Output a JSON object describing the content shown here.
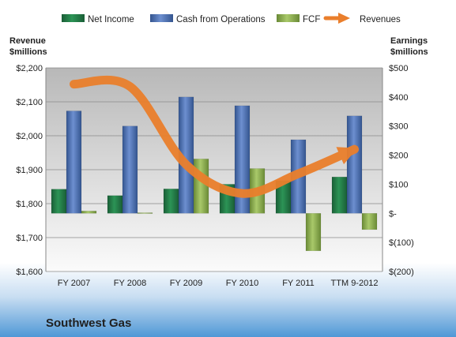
{
  "chart_data": {
    "type": "bar",
    "company": "Southwest Gas",
    "categories": [
      "FY 2007",
      "FY 2008",
      "FY 2009",
      "FY 2010",
      "FY 2011",
      "TTM 9-2012"
    ],
    "left_axis": {
      "title_line1": "Revenue",
      "title_line2": "$millions",
      "range": [
        1600,
        2200
      ],
      "ticks": [
        1600,
        1700,
        1800,
        1900,
        2000,
        2100,
        2200
      ],
      "tick_labels": [
        "$1,600",
        "$1,700",
        "$1,800",
        "$1,900",
        "$2,000",
        "$2,100",
        "$2,200"
      ]
    },
    "right_axis": {
      "title_line1": "Earnings",
      "title_line2": "$millions",
      "range": [
        -200,
        500
      ],
      "ticks": [
        -200,
        -100,
        0,
        100,
        200,
        300,
        400,
        500
      ],
      "tick_labels": [
        "$(200)",
        "$(100)",
        "$-",
        "$100",
        "$200",
        "$300",
        "$400",
        "$500"
      ]
    },
    "series": [
      {
        "name": "Net Income",
        "kind": "bar",
        "axis": "right",
        "color": "#1e7a45",
        "values": [
          83,
          61,
          84,
          100,
          112,
          125
        ]
      },
      {
        "name": "Cash from Operations",
        "kind": "bar",
        "axis": "right",
        "color": "#4a6fb5",
        "values": [
          352,
          300,
          400,
          370,
          253,
          335
        ]
      },
      {
        "name": "FCF",
        "kind": "bar",
        "axis": "right",
        "color": "#8db050",
        "values": [
          8,
          2,
          187,
          154,
          -129,
          -56
        ]
      },
      {
        "name": "Revenues",
        "kind": "line",
        "axis": "left",
        "color": "#ea7f2c",
        "values": [
          2152,
          2145,
          1915,
          1830,
          1888,
          1960
        ]
      }
    ],
    "grid": true,
    "legend_position": "top"
  }
}
